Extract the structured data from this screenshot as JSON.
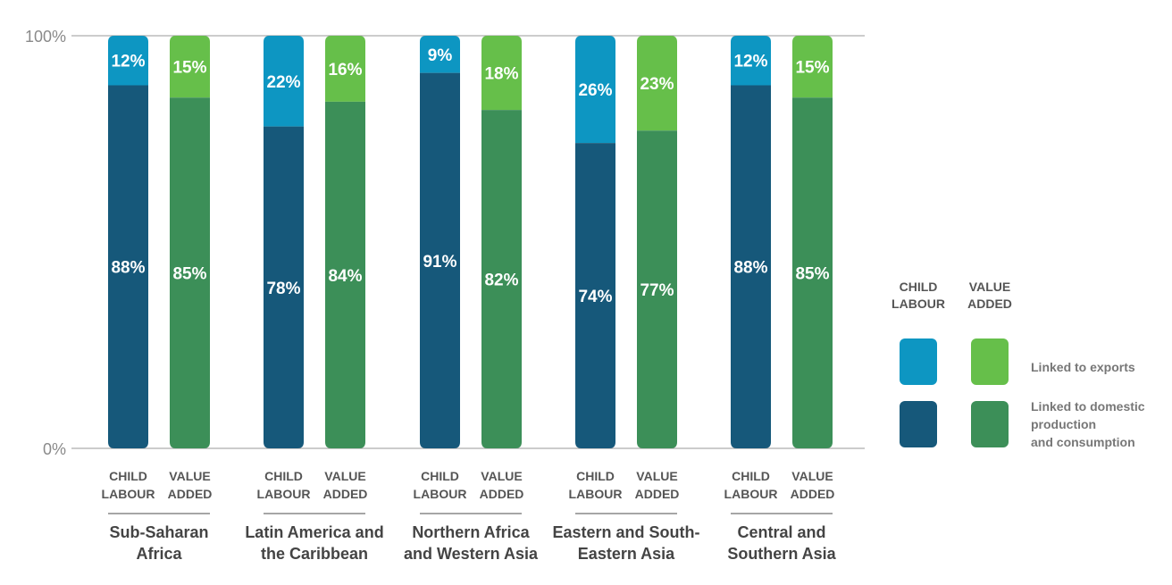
{
  "chart_data": {
    "type": "bar",
    "stacked": true,
    "normalized": true,
    "y_ticks": [
      "100%",
      "0%"
    ],
    "ylim": [
      0,
      100
    ],
    "bar_labels": [
      "CHILD LABOUR",
      "VALUE ADDED"
    ],
    "categories": [
      "Sub-Saharan Africa",
      "Latin America and the Caribbean",
      "Northern Africa and Western Asia",
      "Eastern and South-Eastern Asia",
      "Central and Southern Asia"
    ],
    "region_lines": [
      [
        "Sub-Saharan",
        "Africa"
      ],
      [
        "Latin America and",
        "the Caribbean"
      ],
      [
        "Northern Africa",
        "and Western Asia"
      ],
      [
        "Eastern and South-",
        "Eastern Asia"
      ],
      [
        "Central and",
        "Southern Asia"
      ]
    ],
    "series": [
      {
        "name": "Child labour linked to domestic production and consumption",
        "values": [
          88,
          78,
          91,
          74,
          88
        ],
        "color": "#16587a"
      },
      {
        "name": "Child labour linked to exports",
        "values": [
          12,
          22,
          9,
          26,
          12
        ],
        "color": "#0d96c2"
      },
      {
        "name": "Value added linked to domestic production and consumption",
        "values": [
          85,
          84,
          82,
          77,
          85
        ],
        "color": "#3c8f58"
      },
      {
        "name": "Value added linked to exports",
        "values": [
          15,
          16,
          18,
          23,
          15
        ],
        "color": "#66bf4a"
      }
    ],
    "legend": {
      "placement": "right",
      "column_headers": [
        [
          "CHILD",
          "LABOUR"
        ],
        [
          "VALUE",
          "ADDED"
        ]
      ],
      "rows": [
        {
          "label_lines": [
            "Linked to exports"
          ],
          "colors": [
            "#0d96c2",
            "#66bf4a"
          ]
        },
        {
          "label_lines": [
            "Linked to domestic",
            "production",
            "and consumption"
          ],
          "colors": [
            "#16587a",
            "#3c8f58"
          ]
        }
      ]
    }
  }
}
